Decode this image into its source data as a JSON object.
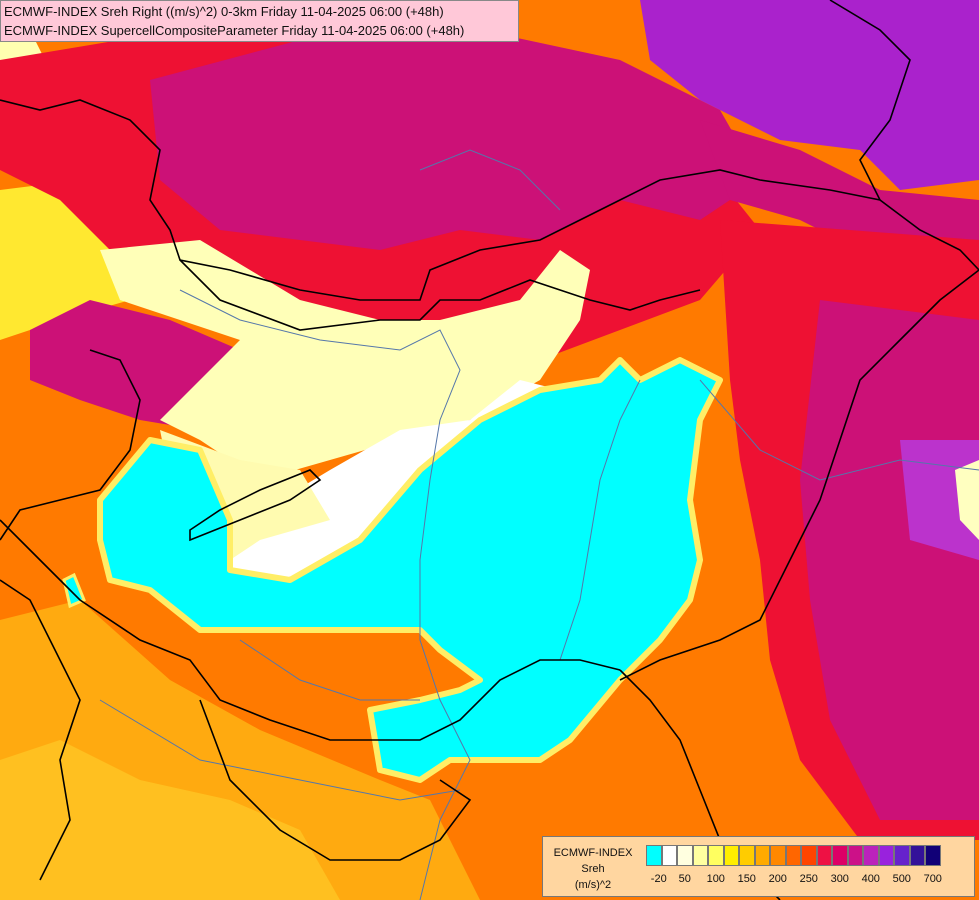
{
  "map": {
    "title_lines": [
      "ECMWF-INDEX Sreh Right ((m/s)^2) 0-3km Friday 11-04-2025 06:00 (+48h)",
      "ECMWF-INDEX SupercellCompositeParameter Friday 11-04-2025 06:00 (+48h)"
    ],
    "legend": {
      "title_lines": [
        "ECMWF-INDEX",
        "Sreh",
        "(m/s)^2"
      ],
      "tick_labels": [
        "-20",
        "50",
        "100",
        "150",
        "200",
        "250",
        "300",
        "400",
        "500",
        "700"
      ],
      "swatch_colors": [
        "#00ffff",
        "#ffffff",
        "#ffffe0",
        "#ffffa0",
        "#ffff60",
        "#ffee00",
        "#ffcc00",
        "#ffaa00",
        "#ff8800",
        "#ff6600",
        "#ff4400",
        "#ee1144",
        "#dd0066",
        "#cc1188",
        "#bb22bb",
        "#9922dd",
        "#6622cc",
        "#331199",
        "#110077"
      ]
    },
    "colors": {
      "background": "#ff7a00",
      "cyan_zone": "#00ffff",
      "magenta_zone": "#cc1177",
      "purple_zone": "#aa22cc",
      "red_zone": "#ee1133",
      "pale_yellow_zone": "#ffffc0",
      "borders": "#000000",
      "rivers": "#5577aa"
    }
  }
}
